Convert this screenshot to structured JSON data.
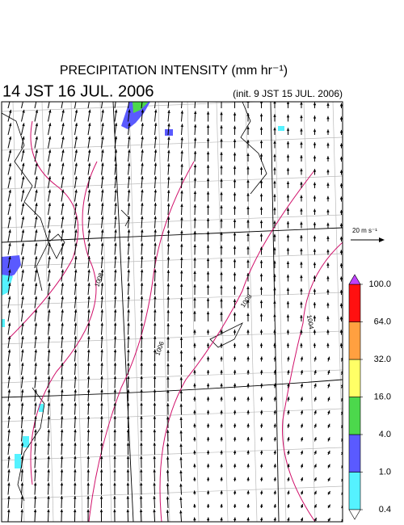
{
  "header": {
    "title": "PRECIPITATION INTENSITY (mm hr⁻¹)",
    "valid_time": "14 JST 16 JUL. 2006",
    "init_time": "(init. 9 JST 15 JUL. 2006)"
  },
  "vector_scale": {
    "label": "20 m s⁻¹"
  },
  "contour_labels": [
    "1008",
    "1004",
    "1008",
    "1006"
  ],
  "colorbar": {
    "levels": [
      {
        "value": 0.4,
        "label": "0.4"
      },
      {
        "value": 1,
        "label": "1.0"
      },
      {
        "value": 4,
        "label": "4.0"
      },
      {
        "value": 16,
        "label": "16.0"
      },
      {
        "value": 32,
        "label": "32.0"
      },
      {
        "value": 64,
        "label": "64.0"
      },
      {
        "value": 100,
        "label": "100.0"
      }
    ],
    "colors": [
      "#55f2ff",
      "#5a5aff",
      "#4cd84c",
      "#ffff66",
      "#ffa040",
      "#ff1010"
    ],
    "under_color": "#ffffff",
    "over_color": "#c040ff"
  }
}
